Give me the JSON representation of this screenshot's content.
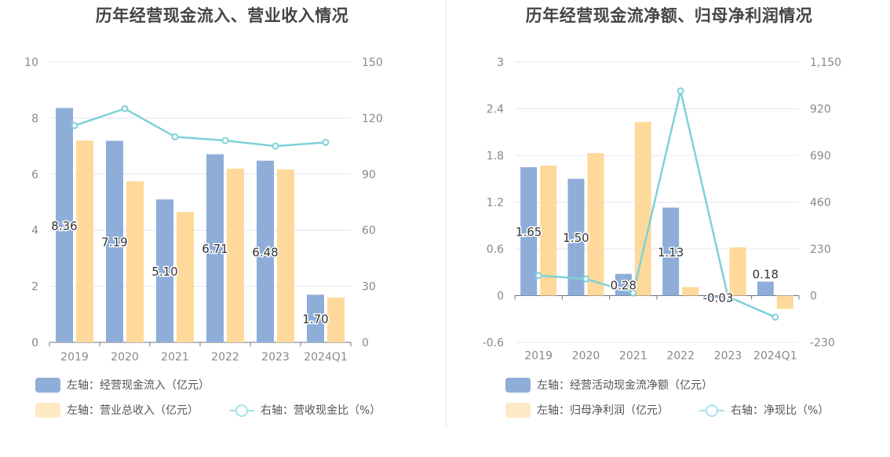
{
  "colors": {
    "bar_primary": "#8eadd9",
    "bar_secondary": "#ffd99b",
    "line": "#7fd1d8",
    "legend_primary": "#8eadd9",
    "legend_secondary": "#ffe8c4",
    "legend_line": "#a6e3ea",
    "grid": "#e4e6f0",
    "axis_text": "#888888"
  },
  "charts": {
    "left": {
      "title": "历年经营现金流入、营业收入情况",
      "legend": {
        "primary": "左轴：经营现金流入（亿元）",
        "secondary": "左轴：营业总收入（亿元）",
        "line": "右轴：营收现金比（%）"
      },
      "y_left_ticks": [
        "10",
        "8",
        "6",
        "4",
        "2",
        "0"
      ],
      "y_right_ticks": [
        "150",
        "120",
        "90",
        "60",
        "30",
        "0"
      ],
      "x_labels": [
        "2019",
        "2020",
        "2021",
        "2022",
        "2023",
        "2024Q1"
      ],
      "data_labels": [
        "8.36",
        "7.19",
        "5.10",
        "6.71",
        "6.48",
        "1.70"
      ]
    },
    "right": {
      "title": "历年经营现金流净额、归母净利润情况",
      "legend": {
        "primary": "左轴：经营活动现金流净额（亿元）",
        "secondary": "左轴：归母净利润（亿元）",
        "line": "右轴：净现比（%）"
      },
      "y_left_ticks": [
        "3",
        "2.4",
        "1.8",
        "1.2",
        "0.6",
        "0",
        "-0.6"
      ],
      "y_right_ticks": [
        "1,150",
        "920",
        "690",
        "460",
        "230",
        "0",
        "-230"
      ],
      "x_labels": [
        "2019",
        "2020",
        "2021",
        "2022",
        "2023",
        "2024Q1"
      ],
      "data_labels": [
        "1.65",
        "1.50",
        "0.28",
        "1.13",
        "-0.03",
        "0.18"
      ]
    }
  },
  "chart_data": [
    {
      "type": "bar",
      "title": "历年经营现金流入、营业收入情况",
      "categories": [
        "2019",
        "2020",
        "2021",
        "2022",
        "2023",
        "2024Q1"
      ],
      "ylim": [
        0,
        10
      ],
      "y2lim": [
        0,
        150
      ],
      "grid": true,
      "legend_position": "bottom",
      "series": [
        {
          "name": "左轴：经营现金流入（亿元）",
          "axis": "left",
          "kind": "bar",
          "values": [
            8.36,
            7.19,
            5.1,
            6.71,
            6.48,
            1.7
          ]
        },
        {
          "name": "左轴：营业总收入（亿元）",
          "axis": "left",
          "kind": "bar",
          "values": [
            7.2,
            5.75,
            4.65,
            6.2,
            6.17,
            1.6
          ]
        },
        {
          "name": "右轴：营收现金比（%）",
          "axis": "right",
          "kind": "line",
          "values": [
            116,
            125,
            110,
            108,
            105,
            107
          ]
        }
      ]
    },
    {
      "type": "bar",
      "title": "历年经营现金流净额、归母净利润情况",
      "categories": [
        "2019",
        "2020",
        "2021",
        "2022",
        "2023",
        "2024Q1"
      ],
      "ylim": [
        -0.6,
        3
      ],
      "y2lim": [
        -230,
        1150
      ],
      "grid": true,
      "legend_position": "bottom",
      "series": [
        {
          "name": "左轴：经营活动现金流净额（亿元）",
          "axis": "left",
          "kind": "bar",
          "values": [
            1.65,
            1.5,
            0.28,
            1.13,
            -0.03,
            0.18
          ]
        },
        {
          "name": "左轴：归母净利润（亿元）",
          "axis": "left",
          "kind": "bar",
          "values": [
            1.67,
            1.83,
            2.23,
            0.11,
            0.62,
            -0.17
          ]
        },
        {
          "name": "右轴：净现比（%）",
          "axis": "right",
          "kind": "line",
          "values": [
            99,
            82,
            13,
            1008,
            -5,
            -106
          ]
        }
      ]
    }
  ]
}
